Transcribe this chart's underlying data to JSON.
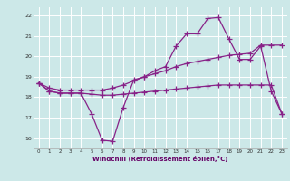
{
  "xlabel": "Windchill (Refroidissement éolien,°C)",
  "bg_color": "#cce8e8",
  "grid_color": "#ffffff",
  "line_color": "#882288",
  "ylim": [
    15.5,
    22.4
  ],
  "xlim": [
    -0.5,
    23.5
  ],
  "yticks": [
    16,
    17,
    18,
    19,
    20,
    21,
    22
  ],
  "xticks": [
    0,
    1,
    2,
    3,
    4,
    5,
    6,
    7,
    8,
    9,
    10,
    11,
    12,
    13,
    14,
    15,
    16,
    17,
    18,
    19,
    20,
    21,
    22,
    23
  ],
  "line1_x": [
    0,
    1,
    2,
    3,
    4,
    5,
    6,
    7,
    8,
    9,
    10,
    11,
    12,
    13,
    14,
    15,
    16,
    17,
    18,
    19,
    20,
    21,
    22,
    23
  ],
  "line1_y": [
    18.7,
    18.3,
    18.2,
    18.2,
    18.2,
    17.2,
    15.9,
    15.85,
    17.5,
    18.85,
    19.0,
    19.3,
    19.5,
    20.5,
    21.1,
    21.1,
    21.85,
    21.9,
    20.85,
    19.85,
    19.85,
    20.5,
    18.3,
    17.2
  ],
  "line2_x": [
    0,
    1,
    2,
    3,
    4,
    5,
    6,
    7,
    8,
    9,
    10,
    11,
    12,
    13,
    14,
    15,
    16,
    17,
    18,
    19,
    20,
    21,
    22,
    23
  ],
  "line2_y": [
    18.7,
    18.3,
    18.2,
    18.2,
    18.2,
    18.15,
    18.1,
    18.1,
    18.15,
    18.2,
    18.25,
    18.3,
    18.35,
    18.4,
    18.45,
    18.5,
    18.55,
    18.6,
    18.6,
    18.6,
    18.6,
    18.6,
    18.6,
    17.2
  ],
  "line3_x": [
    0,
    1,
    2,
    3,
    4,
    5,
    6,
    7,
    8,
    9,
    10,
    11,
    12,
    13,
    14,
    15,
    16,
    17,
    18,
    19,
    20,
    21,
    22,
    23
  ],
  "line3_y": [
    18.7,
    18.45,
    18.35,
    18.35,
    18.35,
    18.35,
    18.35,
    18.45,
    18.6,
    18.8,
    19.0,
    19.15,
    19.3,
    19.5,
    19.65,
    19.75,
    19.85,
    19.95,
    20.05,
    20.1,
    20.15,
    20.55,
    20.55,
    20.55
  ]
}
